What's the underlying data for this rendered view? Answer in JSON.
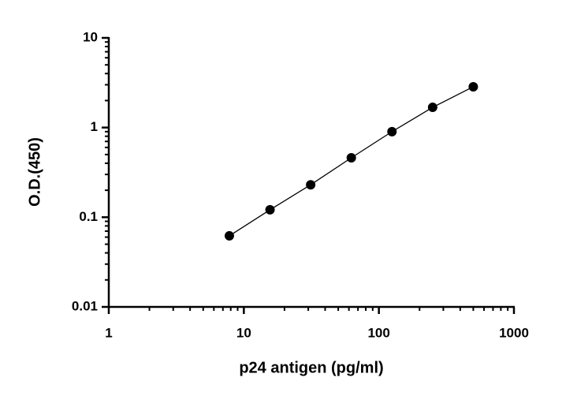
{
  "chart_data": {
    "type": "scatter",
    "x_label": "p24 antigen (pg/ml)",
    "y_label": "O.D.(450)",
    "x_log": true,
    "y_log": true,
    "minor_ticks": true,
    "connect_points": true,
    "xlim": [
      1,
      1000
    ],
    "ylim": [
      0.01,
      10
    ],
    "xticks": [
      1,
      10,
      100,
      1000
    ],
    "yticks": [
      0.01,
      0.1,
      1,
      10
    ],
    "series": [
      {
        "color": "#000000",
        "x": [
          7.8125,
          15.625,
          31.25,
          62.5,
          125,
          250,
          500
        ],
        "values": [
          0.062,
          0.121,
          0.23,
          0.46,
          0.9,
          1.68,
          2.85
        ]
      }
    ]
  }
}
